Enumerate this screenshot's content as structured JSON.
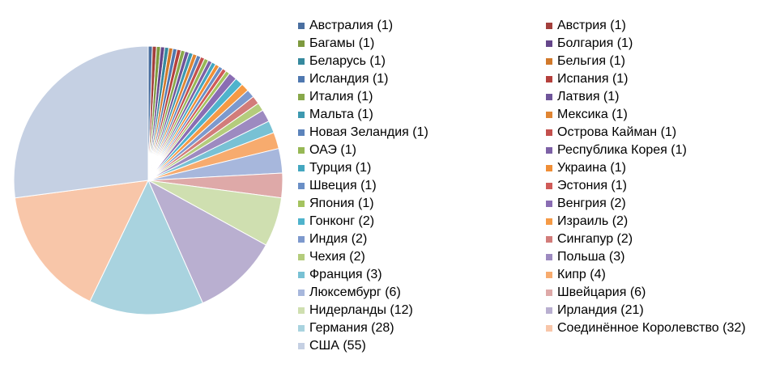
{
  "chart_data": {
    "type": "pie",
    "title": "",
    "legend_position": "right",
    "slices": [
      {
        "label": "Австралия (1)",
        "value": 1,
        "color": "#4a6fa0"
      },
      {
        "label": "Австрия (1)",
        "value": 1,
        "color": "#a33f3c"
      },
      {
        "label": "Багамы (1)",
        "value": 1,
        "color": "#7e9a3f"
      },
      {
        "label": "Болгария (1)",
        "value": 1,
        "color": "#65468a"
      },
      {
        "label": "Беларусь (1)",
        "value": 1,
        "color": "#36899e"
      },
      {
        "label": "Бельгия (1)",
        "value": 1,
        "color": "#d1792b"
      },
      {
        "label": "Исландия (1)",
        "value": 1,
        "color": "#4f78b0"
      },
      {
        "label": "Испания (1)",
        "value": 1,
        "color": "#b5403c"
      },
      {
        "label": "Италия (1)",
        "value": 1,
        "color": "#88a84a"
      },
      {
        "label": "Латвия (1)",
        "value": 1,
        "color": "#6f559a"
      },
      {
        "label": "Мальта (1)",
        "value": 1,
        "color": "#3d99b0"
      },
      {
        "label": "Мексика (1)",
        "value": 1,
        "color": "#e08533"
      },
      {
        "label": "Новая Зеландия (1)",
        "value": 1,
        "color": "#5c83bb"
      },
      {
        "label": "Острова Кайман (1)",
        "value": 1,
        "color": "#c3504d"
      },
      {
        "label": "ОАЭ (1)",
        "value": 1,
        "color": "#97b855"
      },
      {
        "label": "Республика Корея (1)",
        "value": 1,
        "color": "#7d61a6"
      },
      {
        "label": "Турция (1)",
        "value": 1,
        "color": "#44a7c0"
      },
      {
        "label": "Украина (1)",
        "value": 1,
        "color": "#f08e36"
      },
      {
        "label": "Швеция (1)",
        "value": 1,
        "color": "#6a8fc6"
      },
      {
        "label": "Эстония (1)",
        "value": 1,
        "color": "#d05b58"
      },
      {
        "label": "Япония (1)",
        "value": 1,
        "color": "#a4c35f"
      },
      {
        "label": "Венгрия (2)",
        "value": 2,
        "color": "#8a6db3"
      },
      {
        "label": "Гонконг (2)",
        "value": 2,
        "color": "#4fb3cc"
      },
      {
        "label": "Израиль (2)",
        "value": 2,
        "color": "#f59a45"
      },
      {
        "label": "Индия (2)",
        "value": 2,
        "color": "#7d99cd"
      },
      {
        "label": "Сингапур (2)",
        "value": 2,
        "color": "#d27c7a"
      },
      {
        "label": "Чехия (2)",
        "value": 2,
        "color": "#b4cc7c"
      },
      {
        "label": "Польша (3)",
        "value": 3,
        "color": "#9d8ac0"
      },
      {
        "label": "Франция (3)",
        "value": 3,
        "color": "#78c1d4"
      },
      {
        "label": "Кипр (4)",
        "value": 4,
        "color": "#f7ab6e"
      },
      {
        "label": "Люксембург (6)",
        "value": 6,
        "color": "#a7b7dc"
      },
      {
        "label": "Швейцария (6)",
        "value": 6,
        "color": "#dea9a8"
      },
      {
        "label": "Нидерланды (12)",
        "value": 12,
        "color": "#cfdfb0"
      },
      {
        "label": "Ирландия (21)",
        "value": 21,
        "color": "#b9afd0"
      },
      {
        "label": "Германия (28)",
        "value": 28,
        "color": "#a9d3df"
      },
      {
        "label": "Соединённое Королевство (32)",
        "value": 32,
        "color": "#f8c6a9"
      },
      {
        "label": "США (55)",
        "value": 55,
        "color": "#c5d0e3"
      }
    ]
  }
}
